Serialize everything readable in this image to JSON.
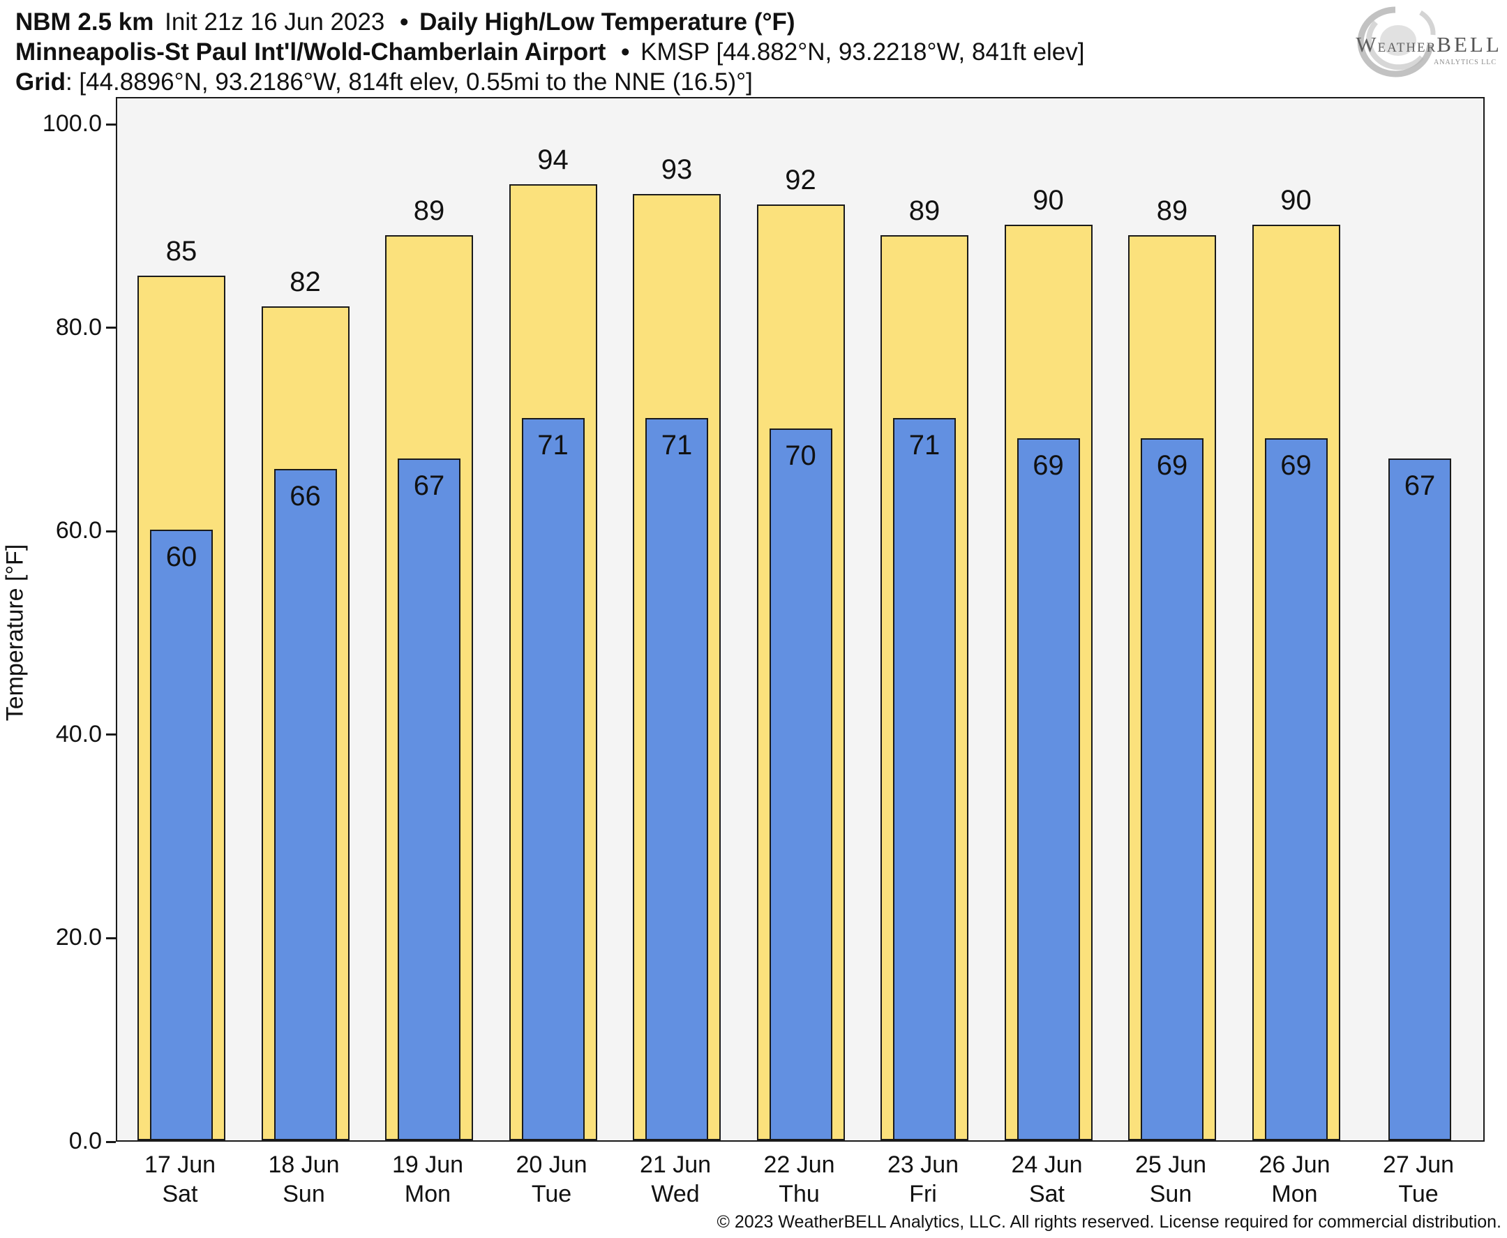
{
  "header": {
    "line1": {
      "model": "NBM 2.5 km",
      "init": "Init 21z 16 Jun 2023",
      "separator": "•",
      "product": "Daily High/Low Temperature (°F)"
    },
    "line2": {
      "station": "Minneapolis-St Paul Int'l/Wold-Chamberlain Airport",
      "separator": "•",
      "station_meta": "KMSP [44.882°N, 93.2218°W, 841ft elev]"
    },
    "line3": {
      "label": "Grid",
      "meta": ": [44.8896°N, 93.2186°W, 814ft elev, 0.55mi to the NNE (16.5)°]"
    }
  },
  "logo": {
    "w": "W",
    "eather": "EATHER",
    "bell": "BELL",
    "subtitle": "ANALYTICS LLC"
  },
  "chart_data": {
    "type": "bar",
    "title": "NBM 2.5 km Daily High/Low Temperature (°F) — KMSP",
    "categories": [
      {
        "date": "17 Jun",
        "weekday": "Sat"
      },
      {
        "date": "18 Jun",
        "weekday": "Sun"
      },
      {
        "date": "19 Jun",
        "weekday": "Mon"
      },
      {
        "date": "20 Jun",
        "weekday": "Tue"
      },
      {
        "date": "21 Jun",
        "weekday": "Wed"
      },
      {
        "date": "22 Jun",
        "weekday": "Thu"
      },
      {
        "date": "23 Jun",
        "weekday": "Fri"
      },
      {
        "date": "24 Jun",
        "weekday": "Sat"
      },
      {
        "date": "25 Jun",
        "weekday": "Sun"
      },
      {
        "date": "26 Jun",
        "weekday": "Mon"
      },
      {
        "date": "27 Jun",
        "weekday": "Tue"
      }
    ],
    "series": [
      {
        "name": "Daily High",
        "color": "#FBE17C",
        "values": [
          85,
          82,
          89,
          94,
          93,
          92,
          89,
          90,
          89,
          90,
          null
        ]
      },
      {
        "name": "Daily Low",
        "color": "#6290E1",
        "values": [
          60,
          66,
          67,
          71,
          71,
          70,
          71,
          69,
          69,
          69,
          67
        ]
      }
    ],
    "ylabel": "Temperature [°F]",
    "ylim": [
      0,
      102.7
    ],
    "yticks": [
      {
        "value": 0,
        "label": "0.0"
      },
      {
        "value": 20,
        "label": "20.0"
      },
      {
        "value": 40,
        "label": "40.0"
      },
      {
        "value": 60,
        "label": "60.0"
      },
      {
        "value": 80,
        "label": "80.0"
      },
      {
        "value": 100,
        "label": "100.0"
      }
    ],
    "grid": false,
    "legend_position": "none",
    "plot_background": "#F4F4F4",
    "bar_outline": "#1A1A1A",
    "value_labels": {
      "high": "above bar",
      "low": "inside bar top"
    }
  },
  "footer": {
    "copyright": "© 2023 WeatherBELL Analytics, LLC. All rights reserved. License required for commercial distribution."
  }
}
